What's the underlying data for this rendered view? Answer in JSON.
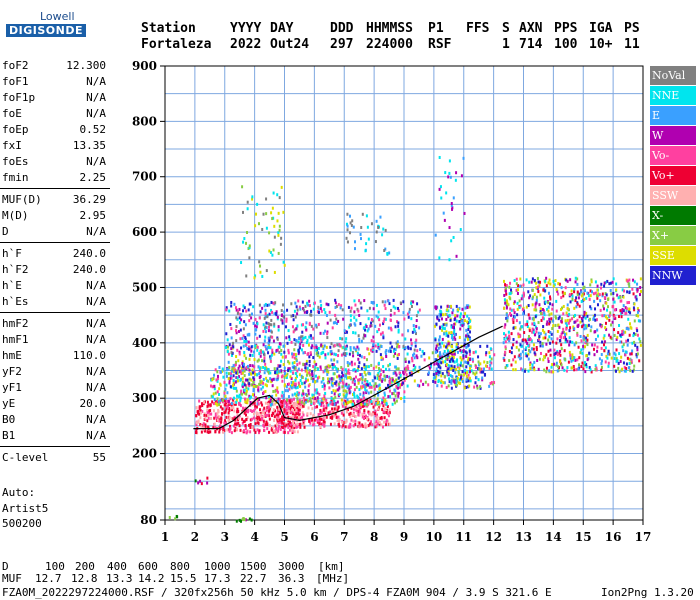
{
  "logo": {
    "line1": "Lowell",
    "line2": "DIGISONDE"
  },
  "header": {
    "labels": [
      "Station",
      "YYYY",
      "DAY",
      "DDD",
      "HHMMSS",
      "P1",
      "FFS",
      "S",
      "AXN",
      "PPS",
      "IGA",
      "PS"
    ],
    "values": [
      "Fortaleza",
      "2022",
      "Out24",
      "297",
      "224000",
      "RSF",
      "",
      "1",
      "714",
      "100",
      "10+",
      "11"
    ]
  },
  "params": [
    {
      "name": "foF2",
      "value": "12.300"
    },
    {
      "name": "foF1",
      "value": "N/A"
    },
    {
      "name": "foF1p",
      "value": "N/A"
    },
    {
      "name": "foE",
      "value": "N/A"
    },
    {
      "name": "foEp",
      "value": "0.52"
    },
    {
      "name": "fxI",
      "value": "13.35"
    },
    {
      "name": "foEs",
      "value": "N/A"
    },
    {
      "name": "fmin",
      "value": "2.25"
    },
    {
      "name": "MUF(D)",
      "value": "36.29"
    },
    {
      "name": "M(D)",
      "value": "2.95"
    },
    {
      "name": "D",
      "value": "N/A"
    },
    {
      "name": "h`F",
      "value": "240.0"
    },
    {
      "name": "h`F2",
      "value": "240.0"
    },
    {
      "name": "h`E",
      "value": "N/A"
    },
    {
      "name": "h`Es",
      "value": "N/A"
    },
    {
      "name": "hmF2",
      "value": "N/A"
    },
    {
      "name": "hmF1",
      "value": "N/A"
    },
    {
      "name": "hmE",
      "value": "110.0"
    },
    {
      "name": "yF2",
      "value": "N/A"
    },
    {
      "name": "yF1",
      "value": "N/A"
    },
    {
      "name": "yE",
      "value": "20.0"
    },
    {
      "name": "B0",
      "value": "N/A"
    },
    {
      "name": "B1",
      "value": "N/A"
    },
    {
      "name": "C-level",
      "value": "55"
    }
  ],
  "autoscaling": {
    "line1": "Auto:",
    "line2": "Artist5",
    "line3": "500200"
  },
  "legend": [
    {
      "label": "NoVal",
      "color": "#808080"
    },
    {
      "label": "NNE",
      "color": "#00e5ee"
    },
    {
      "label": "E",
      "color": "#3aa0ff"
    },
    {
      "label": "W",
      "color": "#b000b0"
    },
    {
      "label": "Vo-",
      "color": "#ff40a0"
    },
    {
      "label": "Vo+",
      "color": "#ee0033"
    },
    {
      "label": "SSW",
      "color": "#ffb0b0"
    },
    {
      "label": "X-",
      "color": "#007a00"
    },
    {
      "label": "X+",
      "color": "#88cc44"
    },
    {
      "label": "SSE",
      "color": "#dddd00"
    },
    {
      "label": "NNW",
      "color": "#2020d0"
    }
  ],
  "chart_data": {
    "type": "scatter",
    "xlim": [
      1,
      17
    ],
    "ylim": [
      80,
      900
    ],
    "x_ticks": [
      "1",
      "2",
      "3",
      "4",
      "5",
      "6",
      "7",
      "8",
      "9",
      "10",
      "11",
      "12",
      "13",
      "14",
      "15",
      "16",
      "17"
    ],
    "y_ticks": [
      "80",
      "200",
      "300",
      "400",
      "500",
      "600",
      "700",
      "800",
      "900"
    ],
    "y_tick_values": [
      80,
      200,
      300,
      400,
      500,
      600,
      700,
      800,
      900
    ],
    "grid": true,
    "profile": {
      "x": [
        1.95,
        2.3,
        2.8,
        3.3,
        3.7,
        4.1,
        4.5,
        4.8,
        5.0,
        5.5,
        6.5,
        7.3,
        8.5,
        9.5,
        10.5,
        11.5,
        12.3
      ],
      "y": [
        245,
        245,
        245,
        260,
        280,
        300,
        305,
        290,
        265,
        260,
        270,
        285,
        320,
        350,
        380,
        410,
        430
      ]
    }
  },
  "footer": {
    "d_label": "D",
    "d_values": [
      "100",
      "200",
      "400",
      "600",
      "800",
      "1000",
      "1500",
      "3000",
      "[km]"
    ],
    "muf_label": "MUF",
    "muf_values": [
      "12.7",
      "12.8",
      "13.3",
      "14.2",
      "15.5",
      "17.3",
      "22.7",
      "36.3",
      "[MHz]"
    ],
    "info": "FZA0M_2022297224000.RSF / 320fx256h 50 kHz 5.0 km / DPS-4 FZA0M 904 / 3.9 S 321.6 E",
    "version": "Ion2Png 1.3.20"
  }
}
